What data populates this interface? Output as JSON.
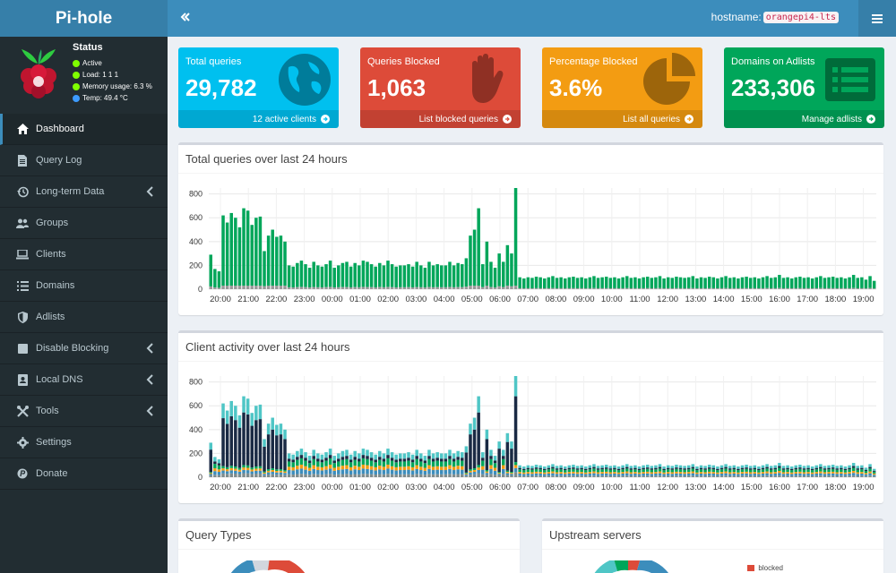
{
  "app": {
    "brand": "Pi-hole",
    "collapse_icon": "double-chevron-left-icon",
    "menu_icon": "hamburger-icon"
  },
  "hostname": {
    "label": "hostname:",
    "value": "orangepi4-lts"
  },
  "status": {
    "title": "Status",
    "active": "Active",
    "load": "Load:  1  1  1",
    "memory": "Memory usage:  6.3 %",
    "temp": "Temp:  49.4 °C",
    "colors": {
      "ok": "#7fff00",
      "temp": "#3d9bff"
    }
  },
  "sidebar": {
    "items": [
      {
        "label": "Dashboard",
        "icon": "home-icon",
        "active": true
      },
      {
        "label": "Query Log",
        "icon": "file-icon"
      },
      {
        "label": "Long-term Data",
        "icon": "history-icon",
        "chevron": true
      },
      {
        "label": "Groups",
        "icon": "users-icon"
      },
      {
        "label": "Clients",
        "icon": "laptop-icon"
      },
      {
        "label": "Domains",
        "icon": "list-icon"
      },
      {
        "label": "Adlists",
        "icon": "shield-icon"
      },
      {
        "label": "Disable Blocking",
        "icon": "stop-icon",
        "chevron": true
      },
      {
        "label": "Local DNS",
        "icon": "address-book-icon",
        "chevron": true
      },
      {
        "label": "Tools",
        "icon": "tools-icon",
        "chevron": true
      },
      {
        "label": "Settings",
        "icon": "gear-icon"
      },
      {
        "label": "Donate",
        "icon": "paypal-icon"
      }
    ]
  },
  "stats": [
    {
      "label": "Total queries",
      "value": "29,782",
      "footer": "12 active clients",
      "color": "#00c0ef",
      "icon": "globe-icon"
    },
    {
      "label": "Queries Blocked",
      "value": "1,063",
      "footer": "List blocked queries",
      "color": "#dd4b39",
      "icon": "hand-icon"
    },
    {
      "label": "Percentage Blocked",
      "value": "3.6%",
      "footer": "List all queries",
      "color": "#f39c12",
      "icon": "pie-chart-icon"
    },
    {
      "label": "Domains on Adlists",
      "value": "233,306",
      "footer": "Manage adlists",
      "color": "#00a65a",
      "icon": "list-alt-icon"
    }
  ],
  "panels": {
    "query_types": "Query Types",
    "upstream": "Upstream servers",
    "upstream_legend": "blocked"
  },
  "chart_data": [
    {
      "type": "bar",
      "title": "Total queries over last 24 hours",
      "x_ticks": [
        "20:00",
        "21:00",
        "22:00",
        "23:00",
        "00:00",
        "01:00",
        "02:00",
        "03:00",
        "04:00",
        "05:00",
        "06:00",
        "07:00",
        "08:00",
        "09:00",
        "10:00",
        "11:00",
        "12:00",
        "13:00",
        "14:00",
        "15:00",
        "16:00",
        "17:00",
        "18:00",
        "19:00"
      ],
      "y_ticks": [
        0,
        200,
        400,
        600,
        800
      ],
      "ylim": [
        0,
        850
      ],
      "grid": true,
      "stacked": true,
      "colors": {
        "permitted": "#00a65a",
        "blocked": "#999999"
      },
      "values": [
        290,
        170,
        150,
        620,
        560,
        640,
        600,
        520,
        680,
        660,
        540,
        600,
        610,
        320,
        450,
        500,
        440,
        450,
        400,
        200,
        190,
        220,
        240,
        210,
        180,
        230,
        200,
        190,
        210,
        240,
        180,
        200,
        220,
        230,
        190,
        220,
        200,
        240,
        230,
        210,
        190,
        220,
        200,
        240,
        210,
        190,
        200,
        200,
        210,
        190,
        230,
        200,
        180,
        230,
        200,
        210,
        200,
        200,
        230,
        200,
        220,
        210,
        260,
        450,
        500,
        680,
        210,
        400,
        230,
        180,
        300,
        230,
        370,
        300,
        850,
        100,
        90,
        100,
        95,
        105,
        100,
        90,
        100,
        110,
        95,
        100,
        90,
        100,
        105,
        95,
        100,
        90,
        100,
        110,
        95,
        100,
        105,
        95,
        100,
        90,
        100,
        110,
        95,
        100,
        90,
        100,
        105,
        95,
        100,
        110,
        90,
        100,
        95,
        105,
        100,
        95,
        100,
        110,
        90,
        100,
        95,
        105,
        100,
        90,
        100,
        110,
        95,
        100,
        90,
        100,
        105,
        95,
        100,
        90,
        100,
        110,
        95,
        100,
        120,
        95,
        100,
        90,
        100,
        105,
        95,
        100,
        90,
        100,
        110,
        95,
        100,
        105,
        95,
        100,
        90,
        100,
        120,
        95,
        100,
        80,
        110,
        70
      ]
    },
    {
      "type": "bar",
      "title": "Client activity over last 24 hours",
      "x_ticks": [
        "20:00",
        "21:00",
        "22:00",
        "23:00",
        "00:00",
        "01:00",
        "02:00",
        "03:00",
        "04:00",
        "05:00",
        "06:00",
        "07:00",
        "08:00",
        "09:00",
        "10:00",
        "11:00",
        "12:00",
        "13:00",
        "14:00",
        "15:00",
        "16:00",
        "17:00",
        "18:00",
        "19:00"
      ],
      "y_ticks": [
        0,
        200,
        400,
        600,
        800
      ],
      "ylim": [
        0,
        850
      ],
      "grid": true,
      "stacked": true,
      "series_colors": [
        "#7f8c8d",
        "#3c8dbc",
        "#f39c12",
        "#00a65a",
        "#1a2a44",
        "#4fc6c6"
      ],
      "values": [
        290,
        170,
        150,
        620,
        560,
        640,
        600,
        520,
        680,
        660,
        540,
        600,
        610,
        320,
        450,
        500,
        440,
        450,
        400,
        200,
        190,
        220,
        240,
        210,
        180,
        230,
        200,
        190,
        210,
        240,
        180,
        200,
        220,
        230,
        190,
        220,
        200,
        240,
        230,
        210,
        190,
        220,
        200,
        240,
        210,
        190,
        200,
        200,
        210,
        190,
        230,
        200,
        180,
        230,
        200,
        210,
        200,
        200,
        230,
        200,
        220,
        210,
        260,
        450,
        500,
        680,
        210,
        400,
        230,
        180,
        300,
        230,
        370,
        300,
        850,
        100,
        90,
        100,
        95,
        105,
        100,
        90,
        100,
        110,
        95,
        100,
        90,
        100,
        105,
        95,
        100,
        90,
        100,
        110,
        95,
        100,
        105,
        95,
        100,
        90,
        100,
        110,
        95,
        100,
        90,
        100,
        105,
        95,
        100,
        110,
        90,
        100,
        95,
        105,
        100,
        95,
        100,
        110,
        90,
        100,
        95,
        105,
        100,
        90,
        100,
        110,
        95,
        100,
        90,
        100,
        105,
        95,
        100,
        90,
        100,
        110,
        95,
        100,
        120,
        95,
        100,
        90,
        100,
        105,
        95,
        100,
        90,
        100,
        110,
        95,
        100,
        105,
        95,
        100,
        90,
        100,
        120,
        95,
        100,
        80,
        110,
        70
      ]
    }
  ]
}
